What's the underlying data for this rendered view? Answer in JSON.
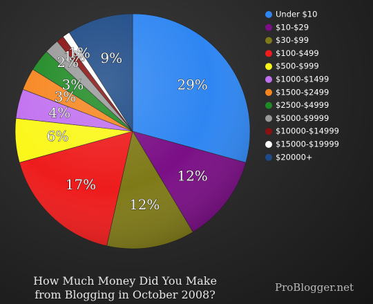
{
  "chart_data": {
    "type": "pie",
    "title": [
      "How Much Money Did You Make",
      "from Blogging in October 2008?"
    ],
    "watermark": "ProBlogger.net",
    "legend_position": "right",
    "slices": [
      {
        "label": "Under $10",
        "value": 29,
        "display": "29%",
        "color": "#2f86f2"
      },
      {
        "label": "$10-$29",
        "value": 12,
        "display": "12%",
        "color": "#7b0f86"
      },
      {
        "label": "$30-$99",
        "value": 12,
        "display": "12%",
        "color": "#7f7a18"
      },
      {
        "label": "$100-$499",
        "value": 17,
        "display": "17%",
        "color": "#ee1c1c"
      },
      {
        "label": "$500-$999",
        "value": 6,
        "display": "6%",
        "color": "#fbf71a"
      },
      {
        "label": "$1000-$1499",
        "value": 4,
        "display": "4%",
        "color": "#c171f0"
      },
      {
        "label": "$1500-$2499",
        "value": 3,
        "display": "3%",
        "color": "#f7861f"
      },
      {
        "label": "$2500-$4999",
        "value": 3,
        "display": "3%",
        "color": "#1f8a24"
      },
      {
        "label": "$5000-$9999",
        "value": 2,
        "display": "2%",
        "color": "#9a9a9a"
      },
      {
        "label": "$10000-$14999",
        "value": 1,
        "display": "1%",
        "color": "#8a1111"
      },
      {
        "label": "$15000-$19999",
        "value": 1,
        "display": "1%",
        "color": "#ffffff"
      },
      {
        "label": "$20000+",
        "value": 9,
        "display": "9%",
        "color": "#1d4a86"
      }
    ]
  }
}
